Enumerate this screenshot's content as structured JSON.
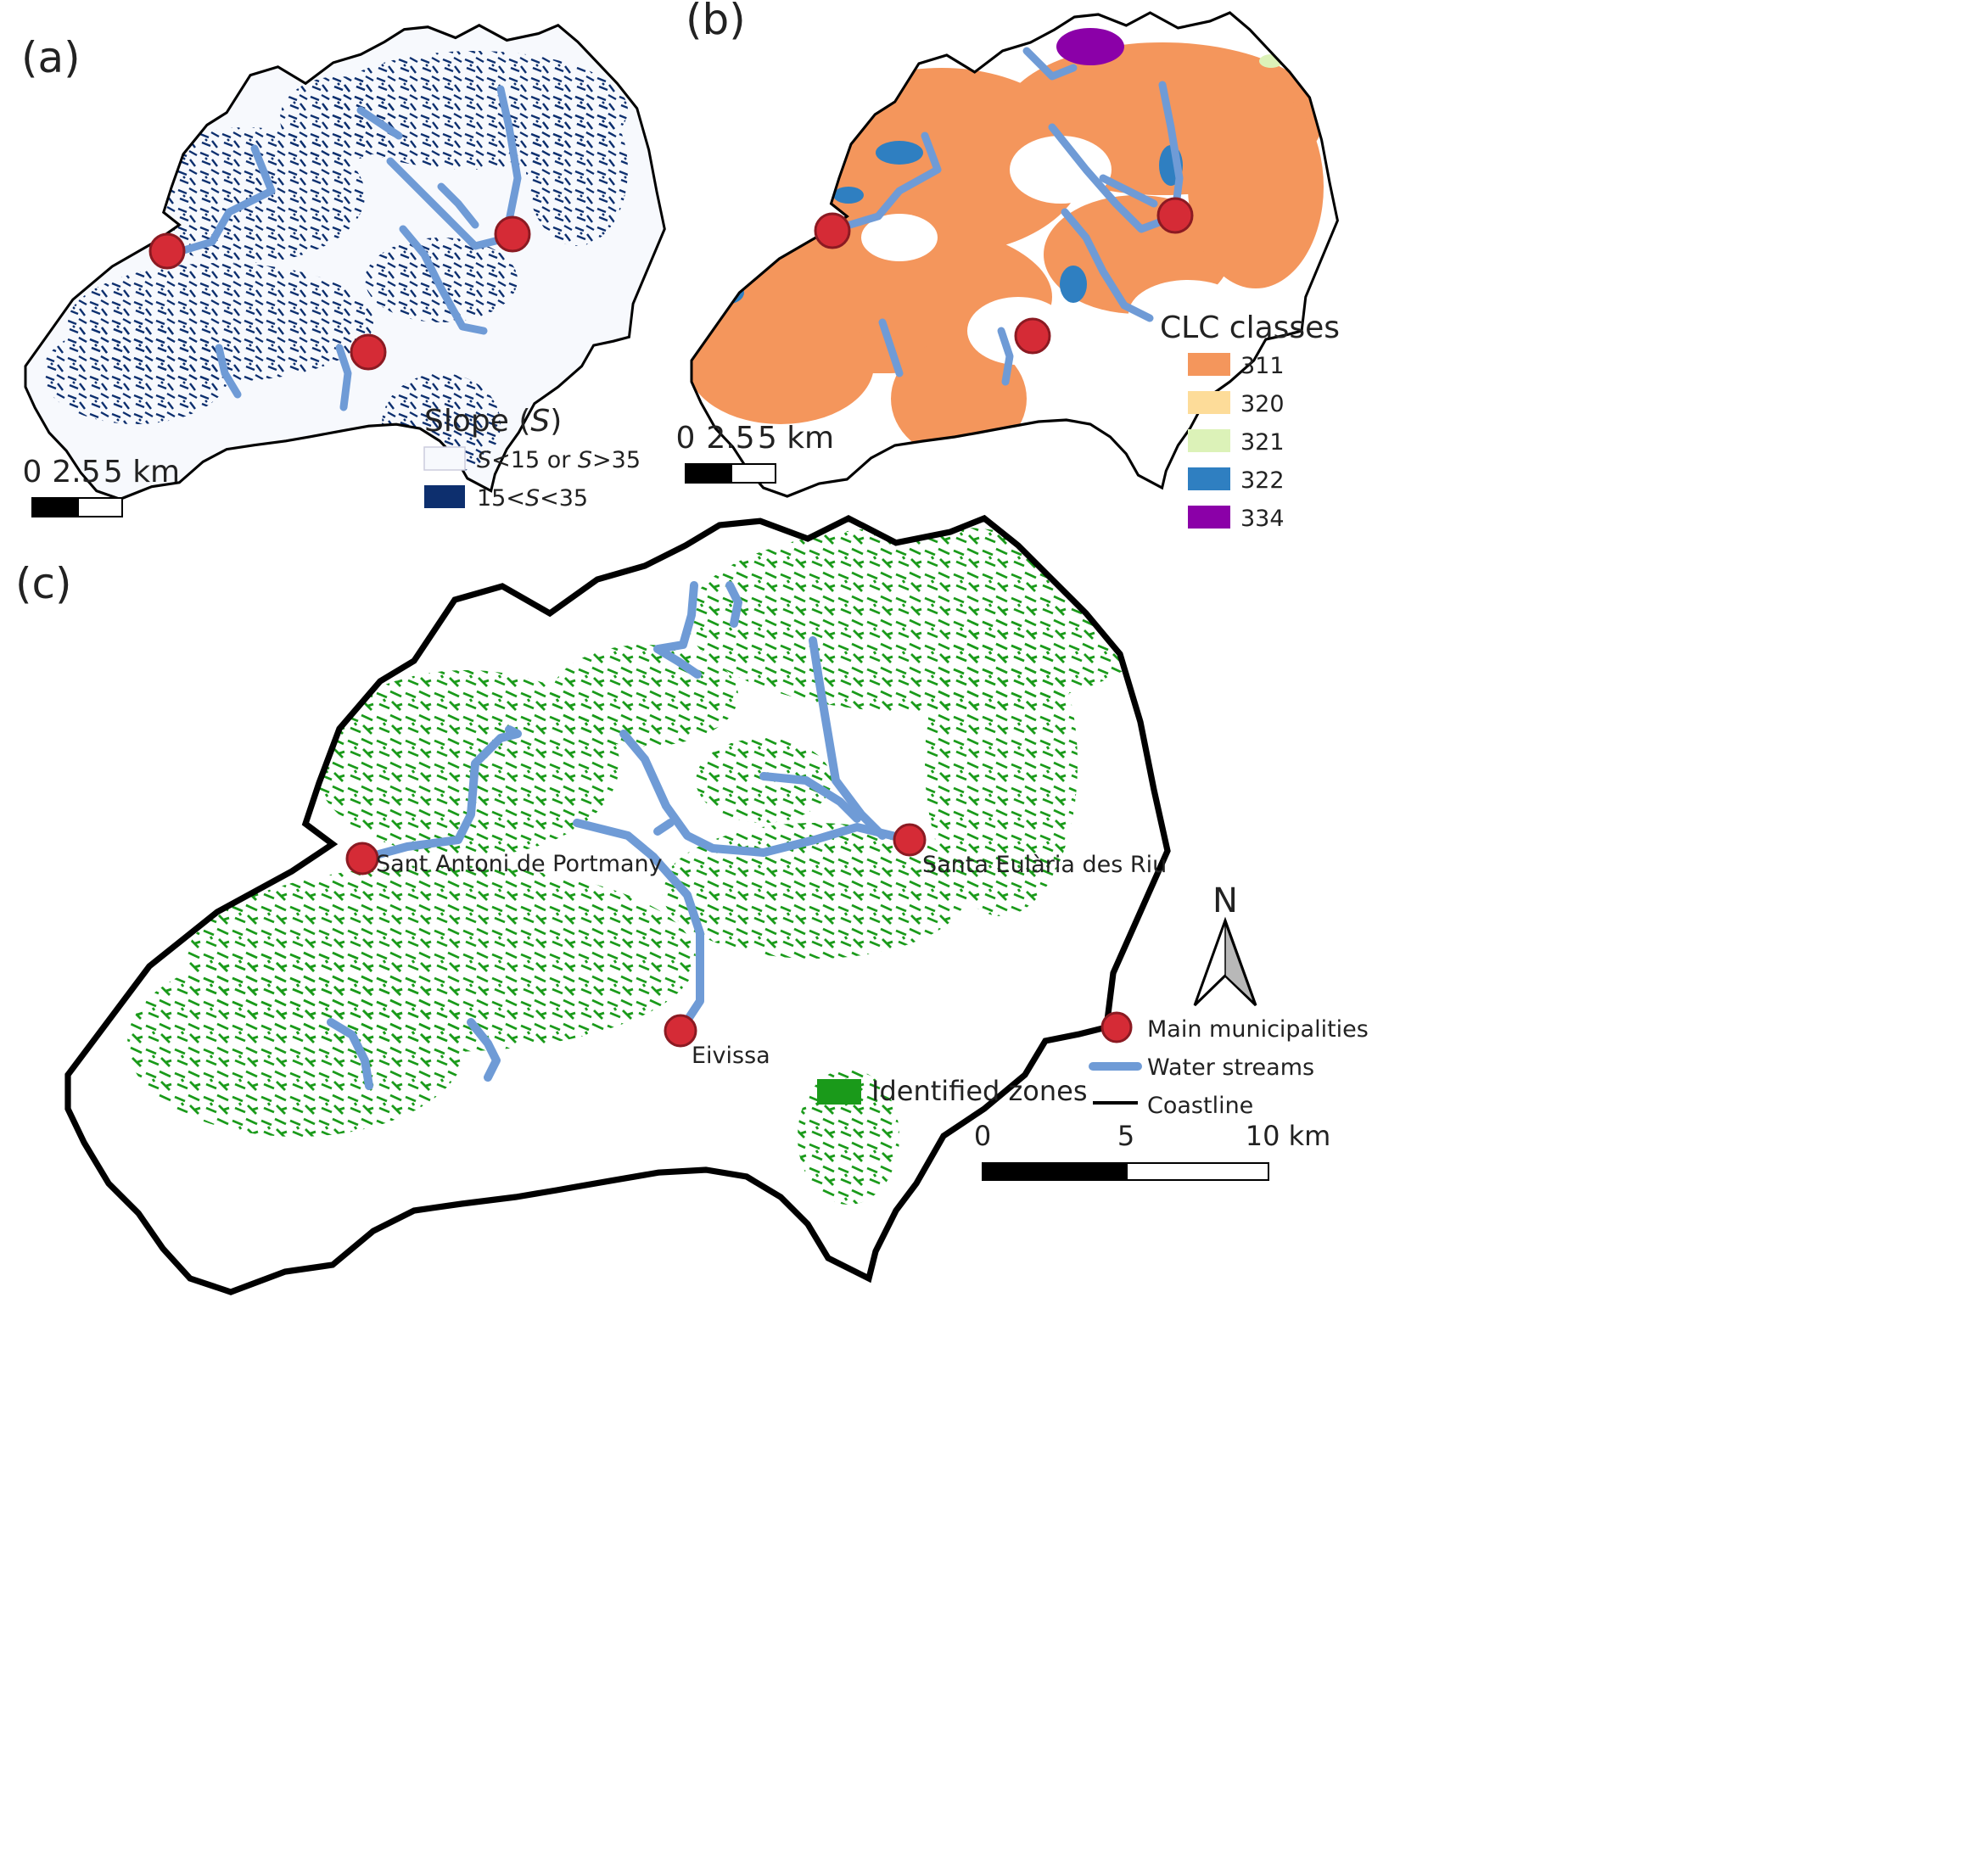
{
  "colors": {
    "coastline": "#000000",
    "water_stream": "#6f9bd6",
    "municipality_fill": "#d52b36",
    "municipality_stroke": "#8b1a22",
    "slope_steep": "#0d2f6e",
    "slope_flat": "#f7f9fd",
    "clc_311": "#f4965c",
    "clc_320": "#fddc99",
    "clc_321": "#dcf2b8",
    "clc_322": "#2f7fc1",
    "clc_334": "#8b00a8",
    "identified": "#1a9a1a"
  },
  "panel_a": {
    "label": "(a)",
    "legend": {
      "title_prefix": "Slope (",
      "title_var": "S",
      "title_suffix": ")",
      "item1": {
        "v1": "S",
        "t1": "<15 or ",
        "v2": "S",
        "t2": ">35"
      },
      "item2": {
        "t1": "15<",
        "v": "S",
        "t2": "<35"
      }
    },
    "scale": {
      "labels": [
        "0",
        "2.5",
        "5 km"
      ]
    }
  },
  "panel_b": {
    "label": "(b)",
    "legend_title": "CLC classes",
    "classes": [
      {
        "code": "311",
        "color": "#f4965c"
      },
      {
        "code": "320",
        "color": "#fddc99"
      },
      {
        "code": "321",
        "color": "#dcf2b8"
      },
      {
        "code": "322",
        "color": "#2f7fc1"
      },
      {
        "code": "334",
        "color": "#8b00a8"
      }
    ],
    "scale": {
      "labels": [
        "0",
        "2.5",
        "5 km"
      ]
    }
  },
  "panel_c": {
    "label": "(c)",
    "municipalities": [
      "Sant Antoni de Portmany",
      "Santa Eulària des Riu",
      "Eivissa"
    ],
    "north_label": "N",
    "legend": {
      "identified": "Identified zones",
      "main_municipalities": "Main municipalities",
      "water_streams": "Water streams",
      "coastline": "Coastline"
    },
    "scale": {
      "labels": [
        "0",
        "5",
        "10 km"
      ]
    }
  }
}
